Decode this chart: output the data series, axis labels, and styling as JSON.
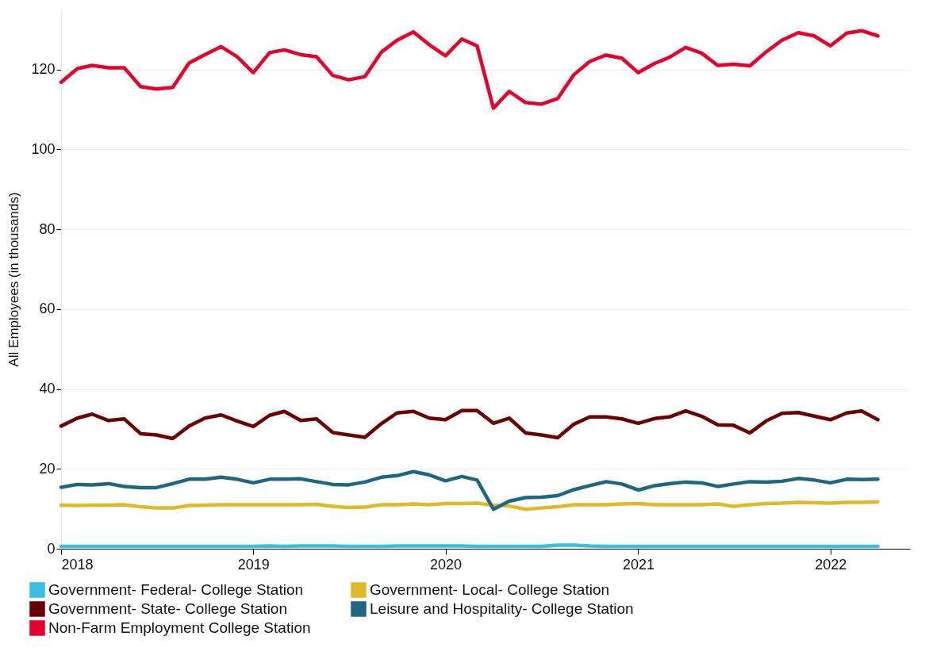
{
  "chart_data": {
    "type": "line",
    "ylabel": "All Employees (in thousands)",
    "x": [
      "2018-01",
      "2018-02",
      "2018-03",
      "2018-04",
      "2018-05",
      "2018-06",
      "2018-07",
      "2018-08",
      "2018-09",
      "2018-10",
      "2018-11",
      "2018-12",
      "2019-01",
      "2019-02",
      "2019-03",
      "2019-04",
      "2019-05",
      "2019-06",
      "2019-07",
      "2019-08",
      "2019-09",
      "2019-10",
      "2019-11",
      "2019-12",
      "2020-01",
      "2020-02",
      "2020-03",
      "2020-04",
      "2020-05",
      "2020-06",
      "2020-07",
      "2020-08",
      "2020-09",
      "2020-10",
      "2020-11",
      "2020-12",
      "2021-01",
      "2021-02",
      "2021-03",
      "2021-04",
      "2021-05",
      "2021-06",
      "2021-07",
      "2021-08",
      "2021-09",
      "2021-10",
      "2021-11",
      "2021-12",
      "2022-01",
      "2022-02",
      "2022-03",
      "2022-04"
    ],
    "series": [
      {
        "name": "Government- Federal- College Station",
        "color": "#3bbde4",
        "values": [
          0.6,
          0.6,
          0.6,
          0.6,
          0.6,
          0.6,
          0.6,
          0.6,
          0.6,
          0.6,
          0.6,
          0.6,
          0.6,
          0.7,
          0.6,
          0.7,
          0.7,
          0.7,
          0.6,
          0.6,
          0.6,
          0.7,
          0.7,
          0.7,
          0.7,
          0.7,
          0.6,
          0.6,
          0.6,
          0.6,
          0.6,
          0.9,
          0.9,
          0.7,
          0.6,
          0.6,
          0.6,
          0.6,
          0.6,
          0.6,
          0.6,
          0.6,
          0.6,
          0.6,
          0.6,
          0.6,
          0.6,
          0.6,
          0.6,
          0.6,
          0.6,
          0.6
        ]
      },
      {
        "name": "Government- Local- College Station",
        "color": "#e0b92a",
        "values": [
          10.9,
          10.8,
          10.9,
          10.9,
          11.0,
          10.5,
          10.2,
          10.2,
          10.8,
          10.9,
          11.0,
          11.0,
          11.0,
          11.0,
          11.0,
          11.0,
          11.1,
          10.6,
          10.3,
          10.4,
          11.0,
          11.0,
          11.2,
          11.0,
          11.3,
          11.3,
          11.4,
          10.9,
          10.7,
          9.9,
          10.2,
          10.5,
          11.0,
          11.0,
          11.0,
          11.2,
          11.3,
          11.0,
          11.0,
          11.0,
          11.0,
          11.2,
          10.6,
          11.0,
          11.3,
          11.4,
          11.6,
          11.5,
          11.4,
          11.6,
          11.6,
          11.7
        ]
      },
      {
        "name": "Government- State- College Station",
        "color": "#6b0000",
        "values": [
          30.7,
          32.7,
          33.7,
          32.1,
          32.5,
          28.8,
          28.5,
          27.6,
          30.7,
          32.7,
          33.5,
          32.0,
          30.6,
          33.4,
          34.4,
          32.1,
          32.5,
          29.1,
          28.5,
          27.9,
          31.3,
          34.0,
          34.4,
          32.7,
          32.3,
          34.6,
          34.6,
          31.4,
          32.7,
          29.0,
          28.5,
          27.8,
          31.2,
          33.0,
          33.0,
          32.5,
          31.4,
          32.6,
          33.0,
          34.5,
          33.2,
          31.0,
          30.9,
          29.0,
          32.0,
          33.9,
          34.1,
          33.2,
          32.3,
          34.0,
          34.5,
          32.3
        ]
      },
      {
        "name": "Leisure and Hospitality- College Station",
        "color": "#1f6680",
        "values": [
          15.4,
          16.1,
          16.0,
          16.3,
          15.6,
          15.3,
          15.3,
          16.3,
          17.4,
          17.4,
          17.9,
          17.4,
          16.5,
          17.4,
          17.4,
          17.5,
          16.8,
          16.1,
          16.0,
          16.7,
          17.9,
          18.3,
          19.3,
          18.5,
          17.0,
          18.1,
          17.2,
          9.9,
          11.9,
          12.8,
          12.9,
          13.3,
          14.8,
          15.8,
          16.8,
          16.2,
          14.7,
          15.8,
          16.3,
          16.7,
          16.5,
          15.6,
          16.2,
          16.8,
          16.7,
          16.9,
          17.6,
          17.2,
          16.5,
          17.4,
          17.3,
          17.4
        ]
      },
      {
        "name": "Non-Farm Employment College Station",
        "color": "#e4002b",
        "values": [
          116.8,
          120.2,
          121.0,
          120.4,
          120.4,
          115.7,
          115.1,
          115.5,
          121.6,
          123.7,
          125.7,
          123.2,
          119.2,
          124.2,
          124.9,
          123.7,
          123.2,
          118.5,
          117.4,
          118.2,
          124.3,
          127.3,
          129.4,
          126.2,
          123.4,
          127.6,
          125.9,
          110.3,
          114.5,
          111.7,
          111.3,
          112.7,
          118.7,
          122.0,
          123.6,
          122.8,
          119.2,
          121.5,
          123.0,
          125.5,
          124.1,
          121.0,
          121.3,
          120.9,
          124.4,
          127.3,
          129.2,
          128.4,
          125.9,
          129.1,
          129.7,
          128.4
        ]
      }
    ],
    "xlim": [
      "2018-01",
      "2022-06"
    ],
    "xticks": [
      {
        "value": "2018-01",
        "label": "2018"
      },
      {
        "value": "2019-01",
        "label": "2019"
      },
      {
        "value": "2020-01",
        "label": "2020"
      },
      {
        "value": "2021-01",
        "label": "2021"
      },
      {
        "value": "2022-01",
        "label": "2022"
      }
    ],
    "ylim": [
      0,
      135
    ],
    "yticks": [
      0,
      20,
      40,
      60,
      80,
      100,
      120
    ],
    "grid": "y",
    "legend": "bottom"
  }
}
